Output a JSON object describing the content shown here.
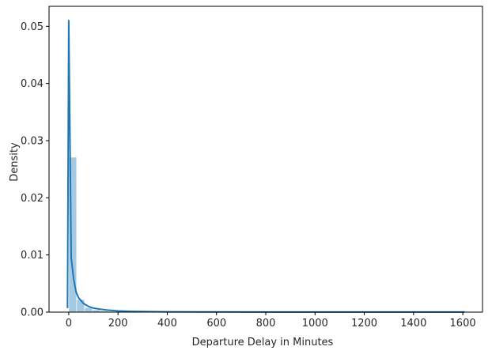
{
  "chart_data": {
    "type": "histogram",
    "title": "",
    "xlabel": "Departure Delay in Minutes",
    "ylabel": "Density",
    "xlim": [
      -80,
      1680
    ],
    "ylim": [
      0,
      0.0535
    ],
    "xticks": [
      0,
      200,
      400,
      600,
      800,
      1000,
      1200,
      1400,
      1600
    ],
    "yticks": [
      0.0,
      0.01,
      0.02,
      0.03,
      0.04,
      0.05
    ],
    "ytick_labels": [
      "0.00",
      "0.01",
      "0.02",
      "0.03",
      "0.04",
      "0.05"
    ],
    "grid": false,
    "bar_color": "#a6c9e2",
    "line_color": "#1f77b4",
    "histogram": {
      "bin_width": 32,
      "bins": [
        {
          "x_start": 0,
          "x_end": 32,
          "density": 0.0271
        },
        {
          "x_start": 32,
          "x_end": 64,
          "density": 0.0022
        },
        {
          "x_start": 64,
          "x_end": 96,
          "density": 0.0008
        },
        {
          "x_start": 96,
          "x_end": 128,
          "density": 0.0004
        },
        {
          "x_start": 128,
          "x_end": 160,
          "density": 0.0002
        },
        {
          "x_start": 160,
          "x_end": 192,
          "density": 0.0001
        }
      ]
    },
    "kde": {
      "x": [
        -5,
        0,
        10,
        20,
        30,
        40,
        60,
        80,
        100,
        130,
        160,
        200,
        260,
        400,
        600,
        800,
        1000,
        1200,
        1400,
        1605
      ],
      "y": [
        0.0008,
        0.051,
        0.0095,
        0.0058,
        0.0035,
        0.0025,
        0.0015,
        0.001,
        0.0007,
        0.0005,
        0.00035,
        0.0002,
        0.00012,
        6e-05,
        3e-05,
        2e-05,
        1e-05,
        1e-05,
        1e-05,
        1e-05
      ]
    }
  }
}
